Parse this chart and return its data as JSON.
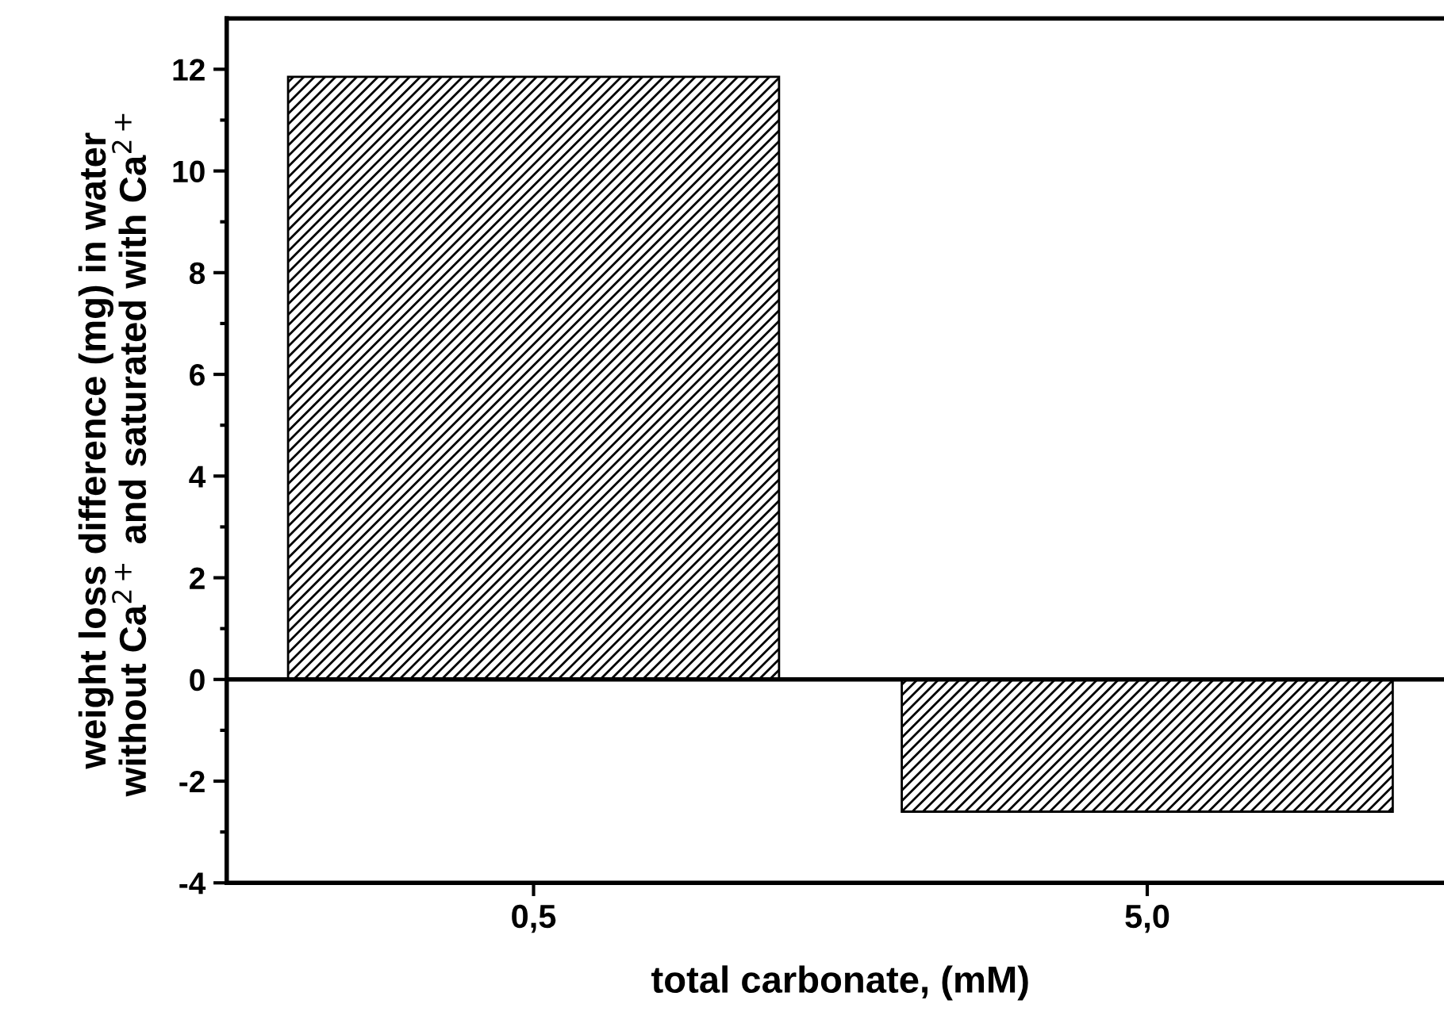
{
  "chart_data": {
    "type": "bar",
    "xlabel": "total carbonate, (mM)",
    "ylabel": "weight loss difference (mg) in water\nwithout Ca$^{2+}$ and saturated with Ca$^{2+}$",
    "categories": [
      "0,5",
      "5,0"
    ],
    "values": [
      11.85,
      -2.6
    ],
    "color": "#000000",
    "ylim": [
      -4,
      13
    ],
    "yticks": [
      -4,
      {
        "value": -3,
        "label": null
      },
      -2,
      {
        "value": -1,
        "label": null
      },
      0,
      {
        "value": 1,
        "label": null
      },
      2,
      {
        "value": 3,
        "label": null
      },
      4,
      {
        "value": 5,
        "label": null
      },
      6,
      {
        "value": 7,
        "label": null
      },
      8,
      {
        "value": 9,
        "label": null
      },
      10,
      {
        "value": 11,
        "label": null
      },
      12
    ],
    "ref_lines": [
      {
        "axis": "y",
        "value": 0,
        "color": "#000000"
      }
    ],
    "grid": false,
    "legend": false
  }
}
